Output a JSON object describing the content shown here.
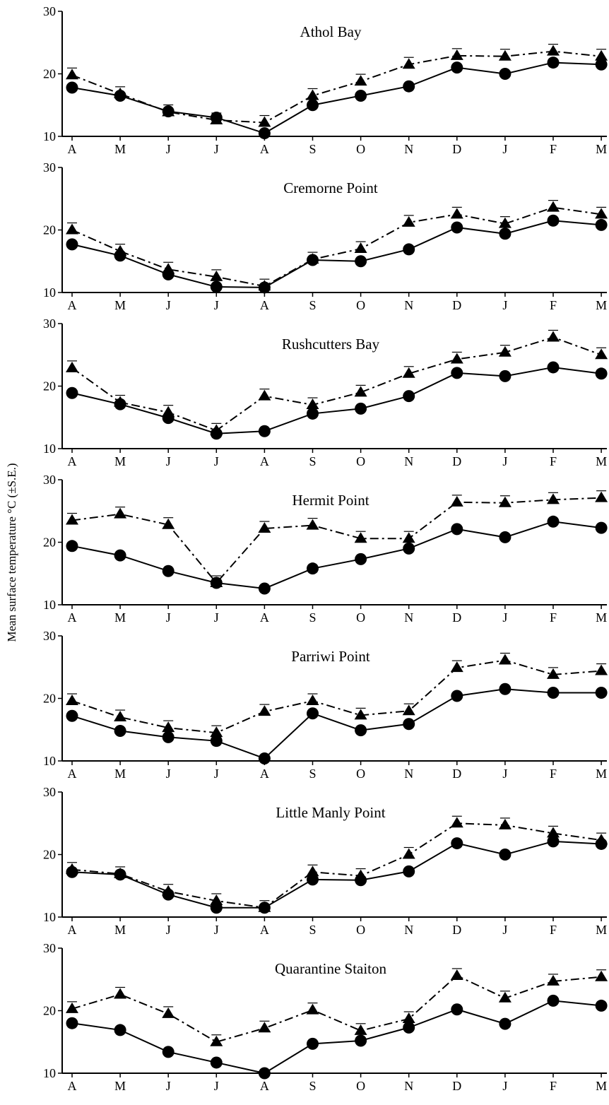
{
  "figure": {
    "ylabel": "Mean surface temperature °C (±S.E.)",
    "month_labels": [
      "A",
      "M",
      "J",
      "J",
      "A",
      "S",
      "O",
      "N",
      "D",
      "J",
      "F",
      "M"
    ],
    "y_ticks": [
      10,
      20,
      30
    ]
  },
  "chart_data": [
    {
      "type": "line",
      "title": "Athol Bay",
      "categories": [
        "A",
        "M",
        "J",
        "J",
        "A",
        "S",
        "O",
        "N",
        "D",
        "J",
        "F",
        "M"
      ],
      "ylim": [
        10,
        30
      ],
      "series": [
        {
          "style": "solid-circle",
          "values": [
            17.8,
            16.5,
            14.0,
            13.0,
            10.5,
            15.0,
            16.5,
            18.0,
            21.0,
            20.0,
            21.8,
            21.5
          ]
        },
        {
          "style": "dashdot-triangle",
          "values": [
            19.8,
            16.8,
            13.9,
            12.6,
            12.2,
            16.5,
            18.8,
            21.5,
            22.9,
            22.8,
            23.6,
            22.8
          ]
        }
      ]
    },
    {
      "type": "line",
      "title": "Cremorne Point",
      "categories": [
        "A",
        "M",
        "J",
        "J",
        "A",
        "S",
        "O",
        "N",
        "D",
        "J",
        "F",
        "M"
      ],
      "ylim": [
        10,
        30
      ],
      "series": [
        {
          "style": "solid-circle",
          "values": [
            17.7,
            15.9,
            12.9,
            10.9,
            10.8,
            15.2,
            15.0,
            16.9,
            20.4,
            19.4,
            21.5,
            20.8
          ]
        },
        {
          "style": "dashdot-triangle",
          "values": [
            20.0,
            16.6,
            13.7,
            12.5,
            11.0,
            15.3,
            17.0,
            21.2,
            22.5,
            21.0,
            23.6,
            22.5
          ]
        }
      ]
    },
    {
      "type": "line",
      "title": "Rushcutters Bay",
      "categories": [
        "A",
        "M",
        "J",
        "J",
        "A",
        "S",
        "O",
        "N",
        "D",
        "J",
        "F",
        "M"
      ],
      "ylim": [
        10,
        30
      ],
      "series": [
        {
          "style": "solid-circle",
          "values": [
            18.9,
            17.1,
            14.9,
            12.4,
            12.8,
            15.6,
            16.4,
            18.4,
            22.1,
            21.6,
            23.0,
            22.0
          ]
        },
        {
          "style": "dashdot-triangle",
          "values": [
            22.9,
            17.4,
            15.8,
            12.9,
            18.4,
            17.0,
            19.0,
            22.0,
            24.3,
            25.4,
            27.8,
            25.0
          ]
        }
      ]
    },
    {
      "type": "line",
      "title": "Hermit Point",
      "categories": [
        "A",
        "M",
        "J",
        "J",
        "A",
        "S",
        "O",
        "N",
        "D",
        "J",
        "F",
        "M"
      ],
      "ylim": [
        10,
        30
      ],
      "series": [
        {
          "style": "solid-circle",
          "values": [
            19.4,
            17.9,
            15.4,
            13.5,
            12.6,
            15.8,
            17.3,
            19.0,
            22.1,
            20.8,
            23.3,
            22.3
          ]
        },
        {
          "style": "dashdot-triangle",
          "values": [
            23.5,
            24.5,
            22.8,
            13.5,
            22.2,
            22.7,
            20.6,
            20.6,
            26.4,
            26.3,
            26.8,
            27.1
          ]
        }
      ]
    },
    {
      "type": "line",
      "title": "Parriwi Point",
      "categories": [
        "A",
        "M",
        "J",
        "J",
        "A",
        "S",
        "O",
        "N",
        "D",
        "J",
        "F",
        "M"
      ],
      "ylim": [
        10,
        30
      ],
      "series": [
        {
          "style": "solid-circle",
          "values": [
            17.2,
            14.8,
            13.8,
            13.2,
            10.4,
            17.6,
            14.9,
            15.9,
            20.4,
            21.5,
            20.9,
            20.9
          ]
        },
        {
          "style": "dashdot-triangle",
          "values": [
            19.6,
            17.0,
            15.3,
            14.5,
            17.9,
            19.6,
            17.3,
            18.0,
            24.9,
            26.1,
            23.8,
            24.4
          ]
        }
      ]
    },
    {
      "type": "line",
      "title": "Little Manly Point",
      "categories": [
        "A",
        "M",
        "J",
        "J",
        "A",
        "S",
        "O",
        "N",
        "D",
        "J",
        "F",
        "M"
      ],
      "ylim": [
        10,
        30
      ],
      "series": [
        {
          "style": "solid-circle",
          "values": [
            17.2,
            16.8,
            13.6,
            11.5,
            11.5,
            16.0,
            15.9,
            17.3,
            21.8,
            20.0,
            22.1,
            21.7
          ]
        },
        {
          "style": "dashdot-triangle",
          "values": [
            17.6,
            16.9,
            14.1,
            12.6,
            11.5,
            17.2,
            16.6,
            20.0,
            25.0,
            24.7,
            23.4,
            22.3
          ]
        }
      ]
    },
    {
      "type": "line",
      "title": "Quarantine Staiton",
      "categories": [
        "A",
        "M",
        "J",
        "J",
        "A",
        "S",
        "O",
        "N",
        "D",
        "J",
        "F",
        "M"
      ],
      "ylim": [
        10,
        30
      ],
      "series": [
        {
          "style": "solid-circle",
          "values": [
            18.0,
            16.9,
            13.4,
            11.7,
            10.0,
            14.7,
            15.2,
            17.3,
            20.2,
            17.9,
            21.6,
            20.8
          ]
        },
        {
          "style": "dashdot-triangle",
          "values": [
            20.3,
            22.6,
            19.5,
            15.0,
            17.2,
            20.1,
            16.8,
            18.7,
            25.6,
            22.0,
            24.7,
            25.4
          ]
        }
      ]
    }
  ]
}
